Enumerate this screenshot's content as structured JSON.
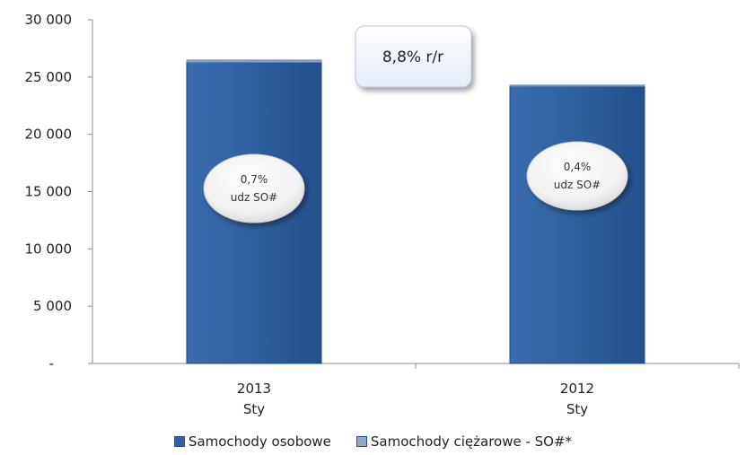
{
  "chart_data": {
    "type": "bar",
    "categories": [
      {
        "year": "2013",
        "month": "Sty"
      },
      {
        "year": "2012",
        "month": "Sty"
      }
    ],
    "series": [
      {
        "name": "Samochody osobowe",
        "values": [
          26300,
          24200
        ],
        "color": "#2f5f9e"
      },
      {
        "name": "Samochody ciężarowe - SO#*",
        "values": [
          185,
          97
        ],
        "color": "#8fa9cc"
      }
    ],
    "y_ticks": [
      "-",
      "5 000",
      "10 000",
      "15 000",
      "20 000",
      "25 000",
      "30 000"
    ],
    "ylim": [
      0,
      30000
    ],
    "grid": false,
    "legend_position": "bottom",
    "annotations": {
      "growth": "8,8% r/r",
      "shares": [
        {
          "pct": "0,7%",
          "label": "udz SO#"
        },
        {
          "pct": "0,4%",
          "label": "udz SO#"
        }
      ]
    }
  }
}
